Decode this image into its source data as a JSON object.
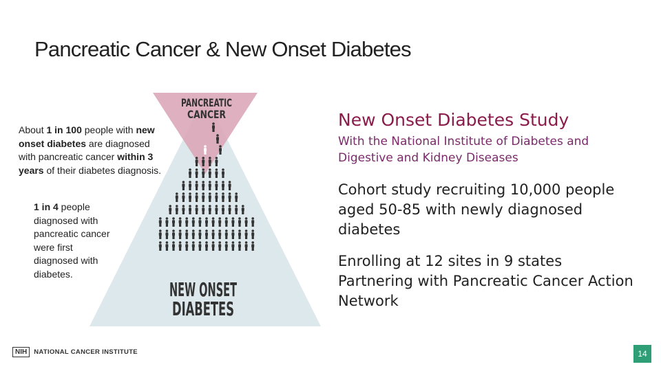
{
  "title": "Pancreatic Cancer & New Onset Diabetes",
  "left": {
    "paragraph1": [
      {
        "text": "About ",
        "bold": false
      },
      {
        "text": "1 in 100",
        "bold": true
      },
      {
        "text": " people with ",
        "bold": false
      },
      {
        "text": "new onset diabetes",
        "bold": true
      },
      {
        "text": " are diagnosed with pancreatic cancer ",
        "bold": false
      },
      {
        "text": "within 3 years",
        "bold": true
      },
      {
        "text": " of their diabetes diagnosis.",
        "bold": false
      }
    ],
    "paragraph2": [
      {
        "text": "1 in 4",
        "bold": true
      },
      {
        "text": " people diagnosed with pancreatic cancer were first diagnosed with diabetes.",
        "bold": false
      }
    ]
  },
  "graphic": {
    "top_label": [
      "PANCREATIC",
      "CANCER"
    ],
    "bottom_label": [
      "NEW ONSET",
      "DIABETES"
    ]
  },
  "study": {
    "heading": "New Onset Diabetes Study",
    "subheading": "With the National Institute of Diabetes and Digestive and Kidney Diseases",
    "paragraphs": [
      [
        "Cohort study recruiting 10,000 people aged 50-85 with newly diagnosed diabetes"
      ],
      [
        "Enrolling at 12 sites in 9 states",
        "Partnering with Pancreatic Cancer Action Network"
      ]
    ]
  },
  "footer": {
    "logo_mark": "NIH",
    "logo_text": "NATIONAL CANCER INSTITUTE",
    "page_number": "14"
  }
}
